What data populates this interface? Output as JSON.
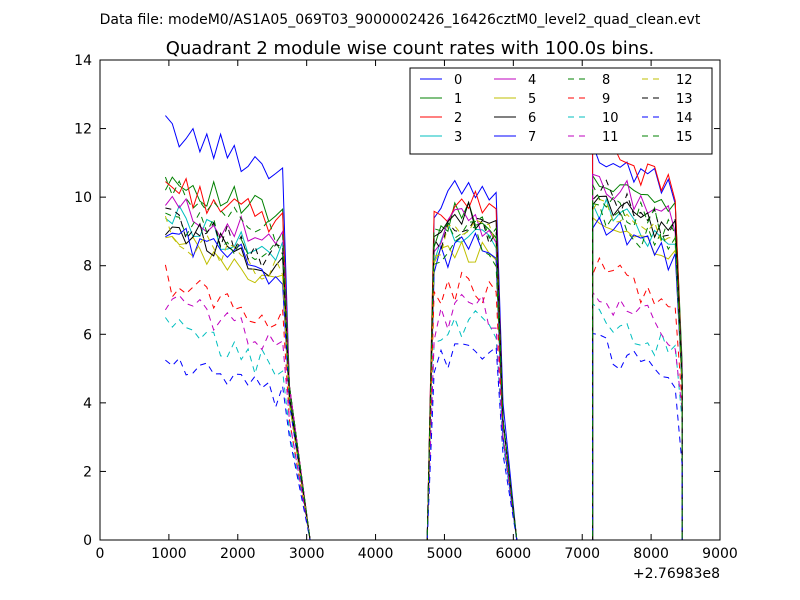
{
  "header": {
    "file_caption": "Data file: modeM0/AS1A05_069T03_9000002426_16426cztM0_level2_quad_clean.evt"
  },
  "chart_data": {
    "type": "line",
    "title": "Quadrant 2 module wise count rates with 100.0s bins.",
    "xlabel": "",
    "ylabel": "",
    "x_offset_label": "+2.76983e8",
    "xlim": [
      0,
      9000
    ],
    "ylim": [
      0,
      14
    ],
    "x_ticks": [
      0,
      1000,
      2000,
      3000,
      4000,
      5000,
      6000,
      7000,
      8000,
      9000
    ],
    "y_ticks": [
      0,
      2,
      4,
      6,
      8,
      10,
      12,
      14
    ],
    "legend_position": "top-right",
    "legend_columns": 4,
    "segments": [
      {
        "start": 950,
        "n": 19,
        "step": 100,
        "fall_to": 3050
      },
      {
        "start": 4850,
        "n": 11,
        "step": 100,
        "fall_to": 6050
      },
      {
        "start": 7150,
        "n": 14,
        "step": 100,
        "fall_to": 8450
      }
    ],
    "x_zero_gaps": [
      [
        3050,
        4750
      ],
      [
        6050,
        7150
      ]
    ],
    "series": [
      {
        "name": "0",
        "color": "#0000ff",
        "dash": "solid",
        "level": [
          12.0,
          9.8,
          11.3
        ],
        "tail": [
          4.5,
          4.0,
          5.0
        ]
      },
      {
        "name": "1",
        "color": "#008000",
        "dash": "solid",
        "level": [
          10.6,
          8.9,
          10.8
        ],
        "tail": [
          4.5,
          3.5,
          5.2
        ]
      },
      {
        "name": "2",
        "color": "#ff0000",
        "dash": "solid",
        "level": [
          10.4,
          9.2,
          11.4
        ],
        "tail": [
          4.5,
          3.5,
          4.8
        ]
      },
      {
        "name": "3",
        "color": "#00bfbf",
        "dash": "solid",
        "level": [
          9.5,
          8.5,
          9.8
        ],
        "tail": [
          4.0,
          3.5,
          4.5
        ]
      },
      {
        "name": "4",
        "color": "#bf00bf",
        "dash": "solid",
        "level": [
          9.8,
          8.7,
          10.6
        ],
        "tail": [
          4.5,
          3.5,
          5.0
        ]
      },
      {
        "name": "5",
        "color": "#bfbf00",
        "dash": "solid",
        "level": [
          8.7,
          7.9,
          9.6
        ],
        "tail": [
          4.0,
          3.0,
          4.5
        ]
      },
      {
        "name": "6",
        "color": "#000000",
        "dash": "solid",
        "level": [
          9.2,
          8.8,
          10.1
        ],
        "tail": [
          4.2,
          3.5,
          4.6
        ]
      },
      {
        "name": "7",
        "color": "#0000ff",
        "dash": "solid",
        "level": [
          9.0,
          8.0,
          9.4
        ],
        "tail": [
          4.0,
          3.0,
          4.5
        ]
      },
      {
        "name": "8",
        "color": "#008000",
        "dash": "dashed",
        "level": [
          9.5,
          8.2,
          9.6
        ],
        "tail": [
          4.2,
          3.4,
          4.5
        ]
      },
      {
        "name": "9",
        "color": "#ff0000",
        "dash": "dashed",
        "level": [
          7.6,
          6.8,
          8.0
        ],
        "tail": [
          3.5,
          3.0,
          4.0
        ]
      },
      {
        "name": "10",
        "color": "#00bfbf",
        "dash": "dashed",
        "level": [
          6.2,
          5.7,
          6.6
        ],
        "tail": [
          3.2,
          2.8,
          3.5
        ]
      },
      {
        "name": "11",
        "color": "#bf00bf",
        "dash": "dashed",
        "level": [
          7.0,
          6.2,
          7.2
        ],
        "tail": [
          3.5,
          3.0,
          3.8
        ]
      },
      {
        "name": "12",
        "color": "#bfbf00",
        "dash": "dashed",
        "level": [
          9.0,
          8.4,
          9.8
        ],
        "tail": [
          4.0,
          3.5,
          4.5
        ]
      },
      {
        "name": "13",
        "color": "#000000",
        "dash": "dashed",
        "level": [
          9.4,
          8.6,
          10.3
        ],
        "tail": [
          4.2,
          3.5,
          4.8
        ]
      },
      {
        "name": "14",
        "color": "#0000ff",
        "dash": "dashed",
        "level": [
          5.3,
          5.0,
          5.8
        ],
        "tail": [
          3.0,
          2.5,
          2.2
        ]
      },
      {
        "name": "15",
        "color": "#008000",
        "dash": "dashed",
        "level": [
          10.2,
          8.7,
          10.2
        ],
        "tail": [
          4.5,
          3.5,
          4.8
        ]
      }
    ]
  }
}
